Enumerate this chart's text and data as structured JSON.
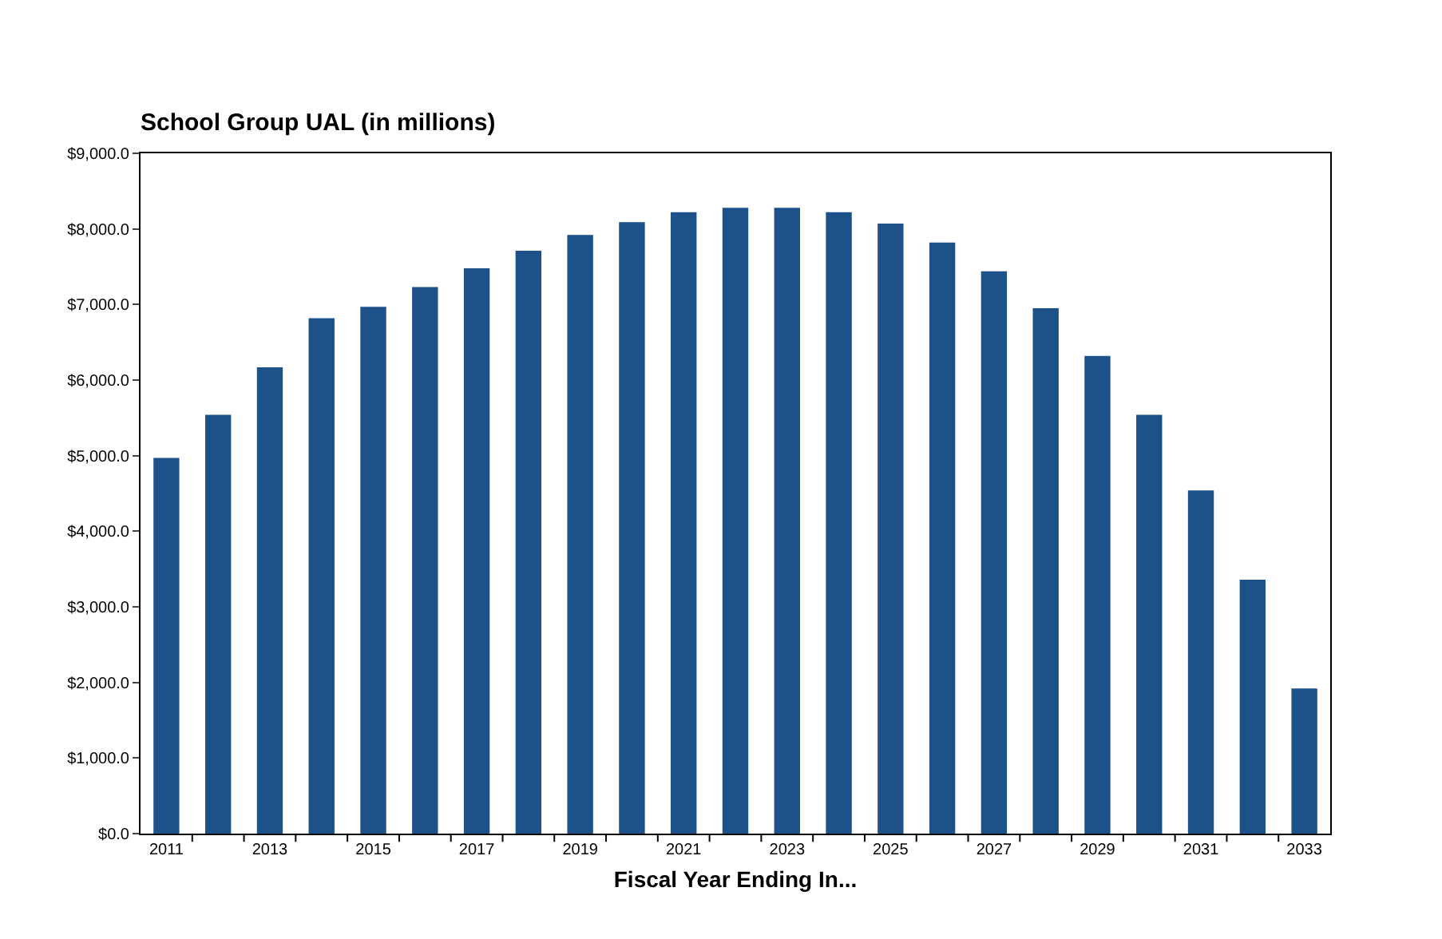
{
  "chart_data": {
    "type": "bar",
    "title": "School Group UAL (in millions)",
    "xlabel": "Fiscal Year Ending In...",
    "categories": [
      "2011",
      null,
      "2013",
      null,
      "2015",
      null,
      "2017",
      null,
      "2019",
      null,
      "2021",
      null,
      "2023",
      null,
      "2025",
      null,
      "2027",
      null,
      "2029",
      null,
      "2031",
      null,
      "2033"
    ],
    "values": [
      4970,
      5540,
      6170,
      6820,
      6970,
      7230,
      7480,
      7710,
      7920,
      8090,
      8220,
      8280,
      8280,
      8220,
      8070,
      7820,
      7440,
      6950,
      6320,
      5540,
      4540,
      3360,
      1920
    ],
    "color": "#1d5189",
    "ylim": [
      0,
      9000
    ],
    "yticks": [
      {
        "value": 0,
        "label": "$0.0"
      },
      {
        "value": 1000,
        "label": "$1,000.0"
      },
      {
        "value": 2000,
        "label": "$2,000.0"
      },
      {
        "value": 3000,
        "label": "$3,000.0"
      },
      {
        "value": 4000,
        "label": "$4,000.0"
      },
      {
        "value": 5000,
        "label": "$5,000.0"
      },
      {
        "value": 6000,
        "label": "$6,000.0"
      },
      {
        "value": 7000,
        "label": "$7,000.0"
      },
      {
        "value": 8000,
        "label": "$8,000.0"
      },
      {
        "value": 9000,
        "label": "$9,000.0"
      }
    ],
    "grid": false
  }
}
